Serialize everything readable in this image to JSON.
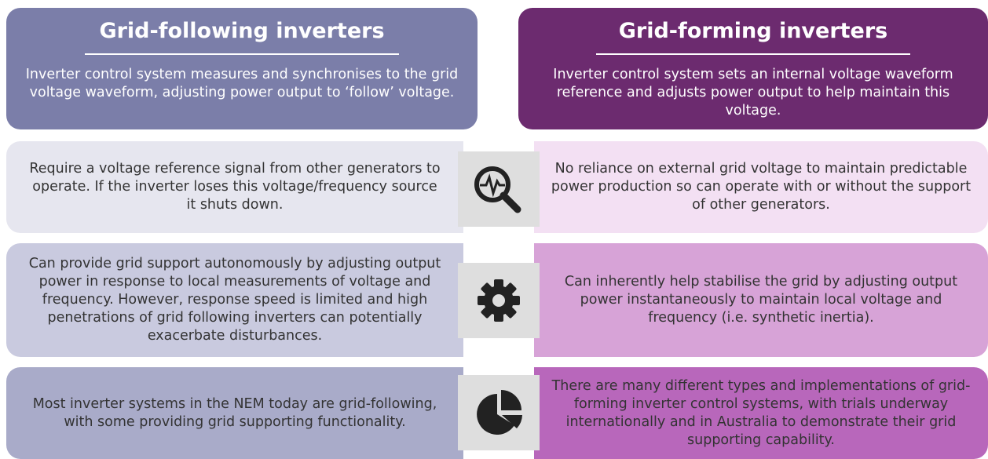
{
  "columns": [
    {
      "title": "Grid-following inverters",
      "description": "Inverter control system measures and synchronises to the grid voltage waveform, adjusting power output to ‘follow’ voltage."
    },
    {
      "title": "Grid-forming inverters",
      "description": "Inverter control system sets an internal voltage waveform reference and adjusts power output to help maintain this voltage."
    }
  ],
  "rows": [
    {
      "left": "Require a voltage reference signal from other generators to operate. If the inverter loses this voltage/frequency source it shuts down.",
      "right": "No reliance on external grid voltage to maintain predictable power production so can operate with or without the support of other generators."
    },
    {
      "left": "Can provide grid support autonomously by adjusting output power in response to local measurements of voltage and frequency. However, response speed is limited and high penetrations of grid following inverters can potentially exacerbate disturbances.",
      "right": "Can inherently help stabilise the grid by adjusting output power instantaneously to maintain local voltage and frequency (i.e. synthetic inertia)."
    },
    {
      "left": "Most inverter systems in the NEM today are grid-following, with some providing grid supporting functionality.",
      "right": "There are many different types and implementations of grid-forming inverter control systems, with trials underway internationally and in Australia to demonstrate their grid supporting capability."
    }
  ]
}
